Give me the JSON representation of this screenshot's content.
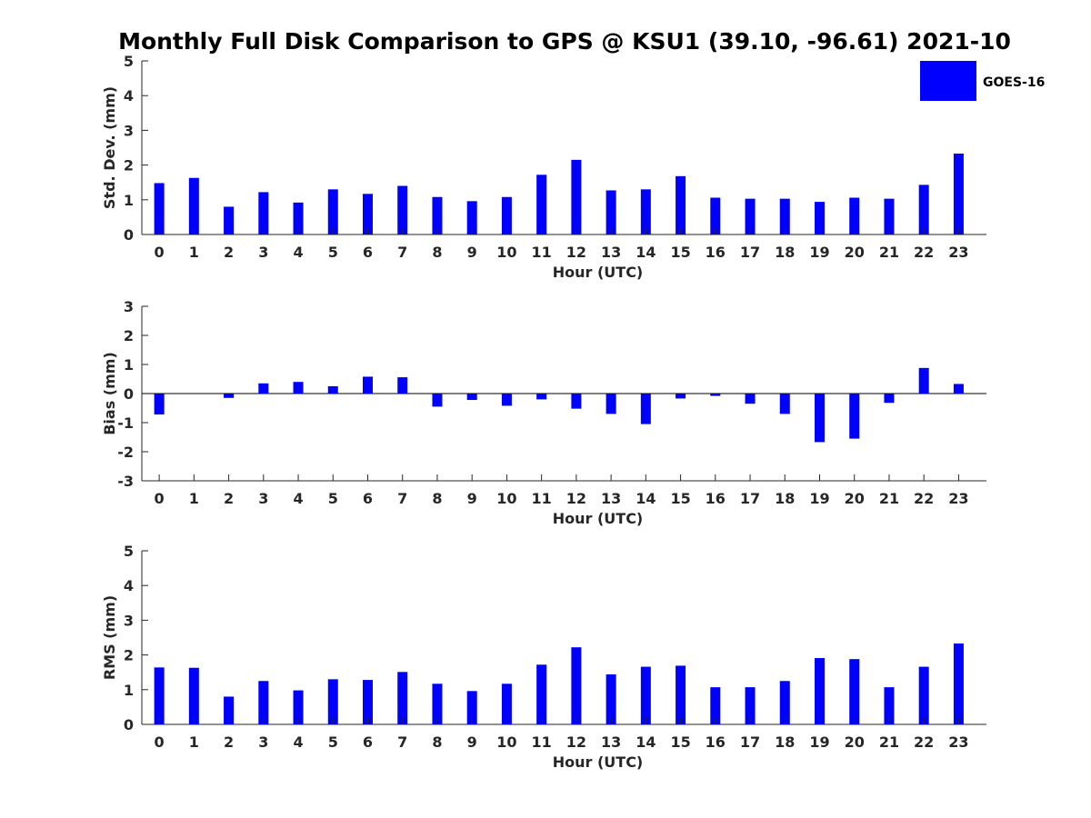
{
  "title": "Monthly Full Disk Comparison to GPS @ KSU1 (39.10, -96.61) 2021-10",
  "legend": {
    "label": "GOES-16",
    "color": "#0000ff"
  },
  "bar_color": "#0000ff",
  "chart_data": [
    {
      "type": "bar",
      "name": "stddev",
      "xlabel": "Hour (UTC)",
      "ylabel": "Std. Dev. (mm)",
      "ylim": [
        0,
        5
      ],
      "yticks": [
        0,
        1,
        2,
        3,
        4,
        5
      ],
      "categories": [
        "0",
        "1",
        "2",
        "3",
        "4",
        "5",
        "6",
        "7",
        "8",
        "9",
        "10",
        "11",
        "12",
        "13",
        "14",
        "15",
        "16",
        "17",
        "18",
        "19",
        "20",
        "21",
        "22",
        "23"
      ],
      "series": [
        {
          "name": "GOES-16",
          "values": [
            1.48,
            1.63,
            0.8,
            1.22,
            0.92,
            1.3,
            1.17,
            1.4,
            1.08,
            0.96,
            1.08,
            1.72,
            2.15,
            1.27,
            1.3,
            1.68,
            1.06,
            1.03,
            1.03,
            0.94,
            1.06,
            1.03,
            1.43,
            2.33
          ]
        }
      ]
    },
    {
      "type": "bar",
      "name": "bias",
      "xlabel": "Hour (UTC)",
      "ylabel": "Bias (mm)",
      "ylim": [
        -3,
        3
      ],
      "yticks": [
        -3,
        -2,
        -1,
        0,
        1,
        2,
        3
      ],
      "zeroline": true,
      "categories": [
        "0",
        "1",
        "2",
        "3",
        "4",
        "5",
        "6",
        "7",
        "8",
        "9",
        "10",
        "11",
        "12",
        "13",
        "14",
        "15",
        "16",
        "17",
        "18",
        "19",
        "20",
        "21",
        "22",
        "23"
      ],
      "series": [
        {
          "name": "GOES-16",
          "values": [
            -0.72,
            0.0,
            -0.15,
            0.35,
            0.4,
            0.25,
            0.58,
            0.56,
            -0.45,
            -0.22,
            -0.42,
            -0.2,
            -0.52,
            -0.7,
            -1.05,
            -0.17,
            -0.08,
            -0.35,
            -0.7,
            -1.67,
            -1.55,
            -0.32,
            0.88,
            0.33
          ]
        }
      ]
    },
    {
      "type": "bar",
      "name": "rms",
      "xlabel": "Hour (UTC)",
      "ylabel": "RMS (mm)",
      "ylim": [
        0,
        5
      ],
      "yticks": [
        0,
        1,
        2,
        3,
        4,
        5
      ],
      "categories": [
        "0",
        "1",
        "2",
        "3",
        "4",
        "5",
        "6",
        "7",
        "8",
        "9",
        "10",
        "11",
        "12",
        "13",
        "14",
        "15",
        "16",
        "17",
        "18",
        "19",
        "20",
        "21",
        "22",
        "23"
      ],
      "series": [
        {
          "name": "GOES-16",
          "values": [
            1.64,
            1.63,
            0.8,
            1.25,
            0.98,
            1.3,
            1.28,
            1.51,
            1.17,
            0.96,
            1.17,
            1.72,
            2.22,
            1.44,
            1.66,
            1.69,
            1.07,
            1.07,
            1.25,
            1.91,
            1.88,
            1.07,
            1.66,
            2.33
          ]
        }
      ]
    }
  ]
}
